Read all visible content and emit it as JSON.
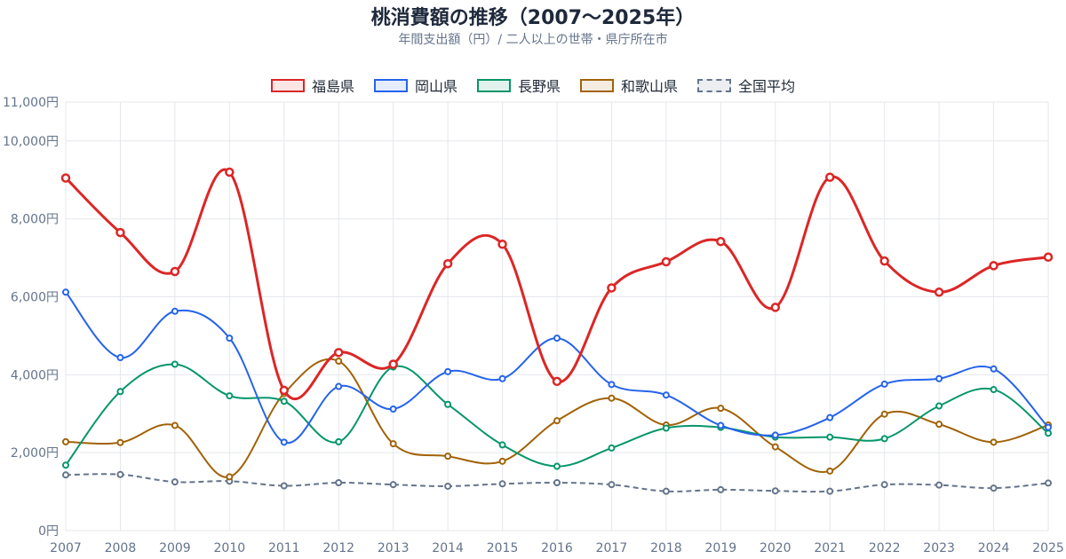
{
  "title": "桃消費額の推移（2007〜2025年）",
  "subtitle": "年間支出額（円）/ 二人以上の世帯・県庁所在市",
  "chart_data": {
    "type": "line",
    "title": "桃消費額の推移（2007〜2025年）",
    "subtitle": "年間支出額（円）/ 二人以上の世帯・県庁所在市",
    "x": [
      "2007",
      "2008",
      "2009",
      "2010",
      "2011",
      "2012",
      "2013",
      "2014",
      "2015",
      "2016",
      "2017",
      "2018",
      "2019",
      "2020",
      "2021",
      "2022",
      "2023",
      "2024",
      "2025"
    ],
    "ylim": [
      0,
      11000
    ],
    "y_ticks": [
      {
        "value": 0,
        "label": "0円"
      },
      {
        "value": 2000,
        "label": "2,000円"
      },
      {
        "value": 4000,
        "label": "4,000円"
      },
      {
        "value": 6000,
        "label": "6,000円"
      },
      {
        "value": 8000,
        "label": "8,000円"
      },
      {
        "value": 10000,
        "label": "10,000円"
      },
      {
        "value": 11000,
        "label": "11,000円"
      }
    ],
    "grid": true,
    "legend_position": "top",
    "series": [
      {
        "name": "福島県",
        "color": "#dc2626",
        "dashed": false,
        "values": [
          9050,
          7650,
          6650,
          9200,
          3600,
          4570,
          4270,
          6850,
          7350,
          3830,
          6230,
          6900,
          7420,
          5730,
          9070,
          6920,
          6120,
          6800,
          7020
        ]
      },
      {
        "name": "岡山県",
        "color": "#2563eb",
        "dashed": false,
        "values": [
          6120,
          4440,
          5630,
          4940,
          2270,
          3700,
          3120,
          4080,
          3900,
          4940,
          3750,
          3480,
          2700,
          2450,
          2900,
          3760,
          3900,
          4150,
          2650
        ]
      },
      {
        "name": "長野県",
        "color": "#059669",
        "dashed": false,
        "values": [
          1680,
          3570,
          4270,
          3460,
          3320,
          2280,
          4200,
          3240,
          2200,
          1650,
          2120,
          2630,
          2650,
          2400,
          2400,
          2360,
          3200,
          3620,
          2500
        ]
      },
      {
        "name": "和歌山県",
        "color": "#a16207",
        "dashed": false,
        "values": [
          2280,
          2260,
          2700,
          1380,
          3520,
          4350,
          2230,
          1910,
          1780,
          2820,
          3400,
          2710,
          3140,
          2150,
          1530,
          2990,
          2730,
          2270,
          2710
        ]
      },
      {
        "name": "全国平均",
        "color": "#64748b",
        "dashed": true,
        "values": [
          1430,
          1440,
          1250,
          1270,
          1150,
          1230,
          1180,
          1140,
          1200,
          1230,
          1180,
          1010,
          1050,
          1020,
          1010,
          1180,
          1170,
          1090,
          1220
        ]
      }
    ]
  }
}
